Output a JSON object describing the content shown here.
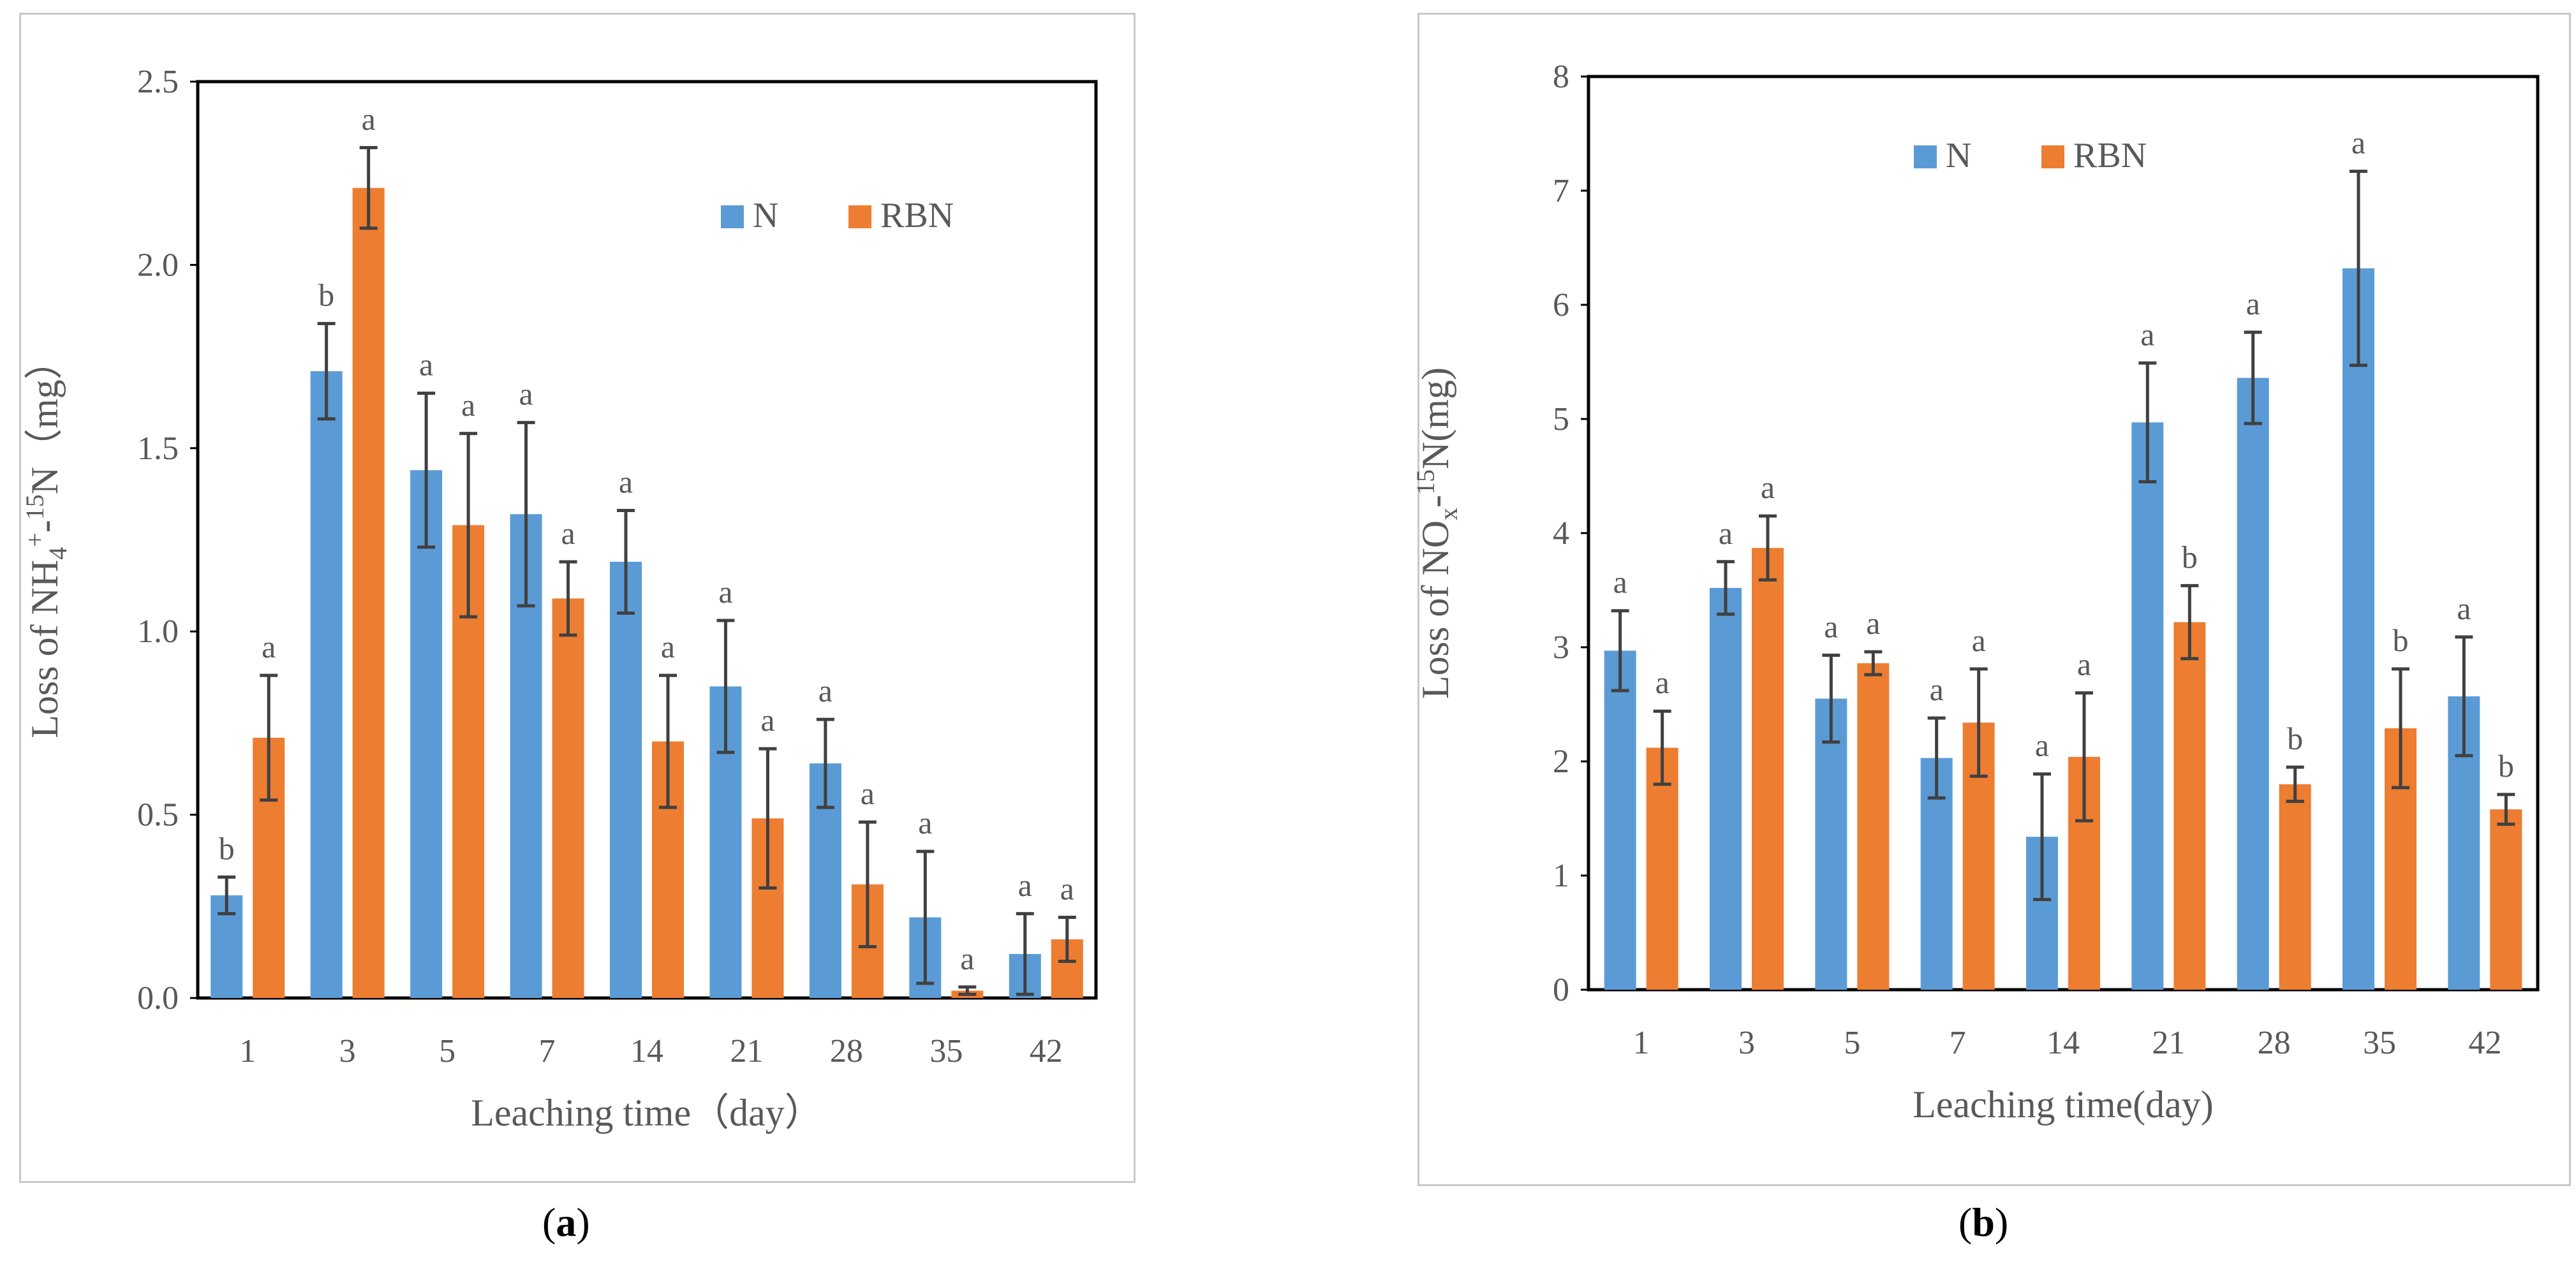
{
  "colors": {
    "N": "#5b9bd5",
    "RBN": "#ed7d31",
    "error_bar": "#404040",
    "axis": "#000000",
    "text": "#595959"
  },
  "legend": {
    "series_1": "N",
    "series_2": "RBN"
  },
  "panel_labels": {
    "a": "a",
    "b": "b"
  },
  "chart_data": [
    {
      "id": "a",
      "type": "bar",
      "title": "",
      "ylabel": "Loss of NH4+-15N（mg）",
      "ylabel_parts": {
        "prefix": "Loss of NH",
        "sub": "4",
        "sup1": "+",
        "mid": "-",
        "sup2": "15",
        "suffix": "N（mg）"
      },
      "xlabel": "Leaching time（day）",
      "ylim": [
        0,
        2.5
      ],
      "yticks": [
        "0.0",
        "0.5",
        "1.0",
        "1.5",
        "2.0",
        "2.5"
      ],
      "categories": [
        "1",
        "3",
        "5",
        "7",
        "14",
        "21",
        "28",
        "35",
        "42"
      ],
      "legend_position": "top-right",
      "series": [
        {
          "name": "N",
          "values": [
            0.28,
            1.71,
            1.44,
            1.32,
            1.19,
            0.85,
            0.64,
            0.22,
            0.12
          ],
          "errors": [
            0.05,
            0.13,
            0.21,
            0.25,
            0.14,
            0.18,
            0.12,
            0.18,
            0.11
          ],
          "labels": [
            "b",
            "b",
            "a",
            "a",
            "a",
            "a",
            "a",
            "a",
            "a"
          ]
        },
        {
          "name": "RBN",
          "values": [
            0.71,
            2.21,
            1.29,
            1.09,
            0.7,
            0.49,
            0.31,
            0.02,
            0.16
          ],
          "errors": [
            0.17,
            0.11,
            0.25,
            0.1,
            0.18,
            0.19,
            0.17,
            0.01,
            0.06
          ],
          "labels": [
            "a",
            "a",
            "a",
            "a",
            "a",
            "a",
            "a",
            "a",
            "a"
          ]
        }
      ]
    },
    {
      "id": "b",
      "type": "bar",
      "title": "",
      "ylabel": "Loss of NOx-15N(mg)",
      "ylabel_parts": {
        "prefix": "Loss of NO",
        "sub": "x",
        "sup1": "",
        "mid": "-",
        "sup2": "15",
        "suffix": "N(mg)"
      },
      "xlabel": "Leaching time(day)",
      "ylim": [
        0,
        8
      ],
      "yticks": [
        "0",
        "1",
        "2",
        "3",
        "4",
        "5",
        "6",
        "7",
        "8"
      ],
      "categories": [
        "1",
        "3",
        "5",
        "7",
        "14",
        "21",
        "28",
        "35",
        "42"
      ],
      "legend_position": "top-center",
      "series": [
        {
          "name": "N",
          "values": [
            2.97,
            3.52,
            2.55,
            2.03,
            1.34,
            4.97,
            5.36,
            6.32,
            2.57
          ],
          "errors": [
            0.35,
            0.23,
            0.38,
            0.35,
            0.55,
            0.52,
            0.4,
            0.85,
            0.52
          ],
          "labels": [
            "a",
            "a",
            "a",
            "a",
            "a",
            "a",
            "a",
            "a",
            "a"
          ]
        },
        {
          "name": "RBN",
          "values": [
            2.12,
            3.87,
            2.86,
            2.34,
            2.04,
            3.22,
            1.8,
            2.29,
            1.58
          ],
          "errors": [
            0.32,
            0.28,
            0.1,
            0.47,
            0.56,
            0.32,
            0.15,
            0.52,
            0.13
          ],
          "labels": [
            "a",
            "a",
            "a",
            "a",
            "a",
            "b",
            "b",
            "b",
            "b"
          ]
        }
      ]
    }
  ]
}
